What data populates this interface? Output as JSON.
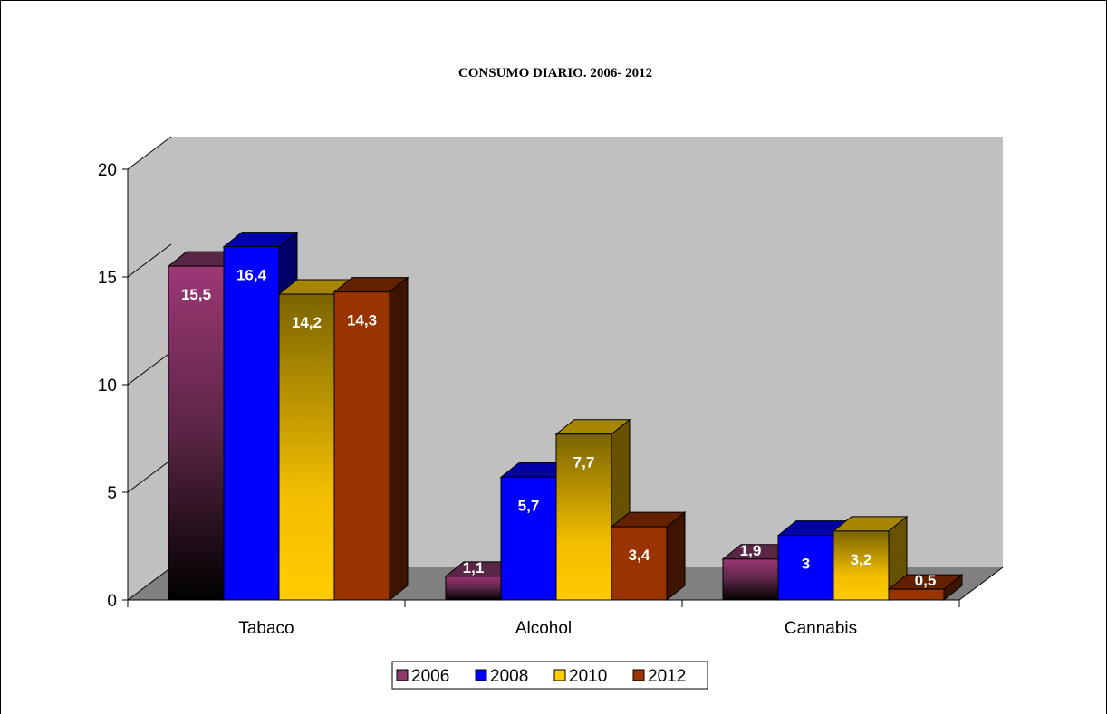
{
  "chart_data": {
    "type": "bar",
    "title": "CONSUMO DIARIO. 2006- 2012",
    "categories": [
      "Tabaco",
      "Alcohol",
      "Cannabis"
    ],
    "series": [
      {
        "name": "2006",
        "values": [
          15.5,
          1.1,
          1.9
        ],
        "labels": [
          "15,5",
          "1,1",
          "1,9"
        ],
        "color": "#8b3a6b"
      },
      {
        "name": "2008",
        "values": [
          16.4,
          5.7,
          3
        ],
        "labels": [
          "16,4",
          "5,7",
          "3"
        ],
        "color": "#0000ff"
      },
      {
        "name": "2010",
        "values": [
          14.2,
          7.7,
          3.2
        ],
        "labels": [
          "14,2",
          "7,7",
          "3,2"
        ],
        "color": "#ffcc00"
      },
      {
        "name": "2012",
        "values": [
          14.3,
          3.4,
          0.5
        ],
        "labels": [
          "14,3",
          "3,4",
          "0,5"
        ],
        "color": "#993300"
      }
    ],
    "ylim": [
      0,
      20
    ],
    "yticks": [
      0,
      5,
      10,
      15,
      20
    ],
    "xlabel": "",
    "ylabel": "",
    "grid": false,
    "legend_position": "bottom",
    "wall_color": "#c0c0c0",
    "floor_color": "#808080"
  }
}
